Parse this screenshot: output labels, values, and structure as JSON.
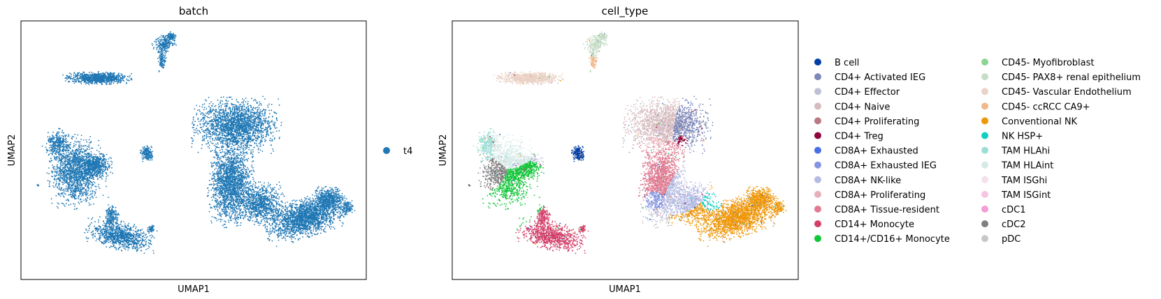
{
  "chart_data": [
    {
      "type": "scatter",
      "title": "batch",
      "xlabel": "UMAP1",
      "ylabel": "UMAP2",
      "grid": false,
      "legend_position": "right",
      "series": [
        {
          "name": "t4",
          "color": "#1f77b4"
        }
      ]
    },
    {
      "type": "scatter",
      "title": "cell_type",
      "xlabel": "UMAP1",
      "ylabel": "UMAP2",
      "grid": false,
      "legend_position": "right",
      "series": [
        {
          "name": "B cell",
          "color": "#023fa5"
        },
        {
          "name": "CD4+ Activated IEG",
          "color": "#7d87b9"
        },
        {
          "name": "CD4+ Effector",
          "color": "#bec1d4"
        },
        {
          "name": "CD4+ Naive",
          "color": "#d6bcc0"
        },
        {
          "name": "CD4+ Proliferating",
          "color": "#bb7784"
        },
        {
          "name": "CD4+ Treg",
          "color": "#8e063b"
        },
        {
          "name": "CD8A+ Exhausted",
          "color": "#4a6fe3"
        },
        {
          "name": "CD8A+ Exhausted IEG",
          "color": "#8595e1"
        },
        {
          "name": "CD8A+ NK-like",
          "color": "#b5bbe3"
        },
        {
          "name": "CD8A+ Proliferating",
          "color": "#e6afb9"
        },
        {
          "name": "CD8A+ Tissue-resident",
          "color": "#e07b91"
        },
        {
          "name": "CD14+ Monocyte",
          "color": "#d33f6a"
        },
        {
          "name": "CD14+/CD16+ Monocyte",
          "color": "#11c638"
        },
        {
          "name": "CD45- Myofibroblast",
          "color": "#8dd593"
        },
        {
          "name": "CD45- PAX8+ renal epithelium",
          "color": "#c6dec7"
        },
        {
          "name": "CD45- Vascular Endothelium",
          "color": "#ead3c6"
        },
        {
          "name": "CD45- ccRCC CA9+",
          "color": "#f0b98d"
        },
        {
          "name": "Conventional NK",
          "color": "#ef9708"
        },
        {
          "name": "NK HSP+",
          "color": "#0fcfc0"
        },
        {
          "name": "TAM HLAhi",
          "color": "#9cded6"
        },
        {
          "name": "TAM HLAint",
          "color": "#d5eae7"
        },
        {
          "name": "TAM ISGhi",
          "color": "#f3e1eb"
        },
        {
          "name": "TAM ISGint",
          "color": "#f6c4e1"
        },
        {
          "name": "cDC1",
          "color": "#f79cd4"
        },
        {
          "name": "cDC2",
          "color": "#7f7f7f"
        },
        {
          "name": "pDC",
          "color": "#c7c7c7"
        }
      ]
    }
  ]
}
